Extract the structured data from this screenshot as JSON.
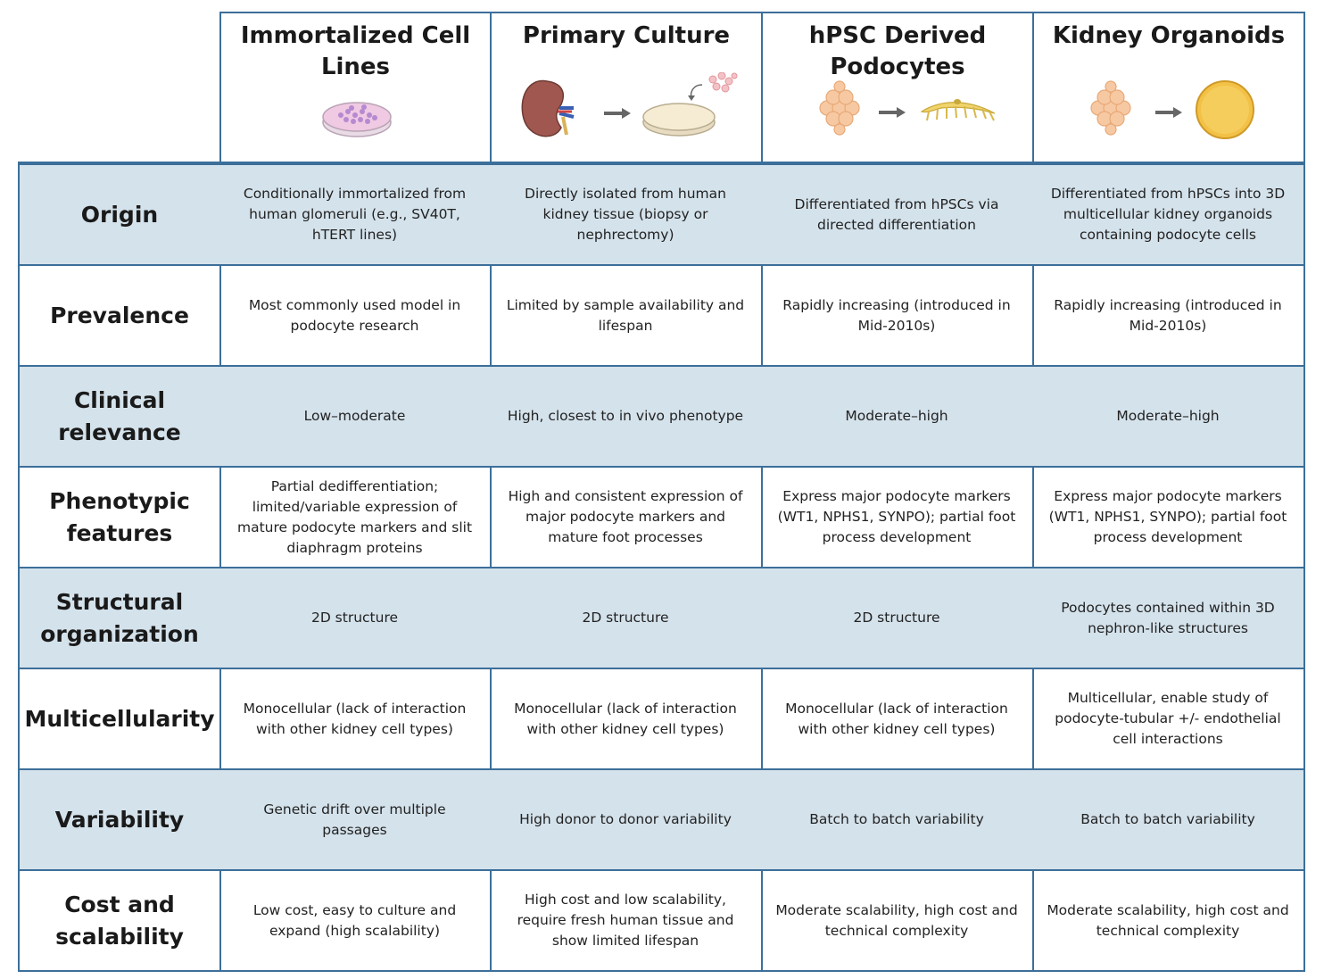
{
  "columns": [
    {
      "title_line1": "Immortalized Cell",
      "title_line2": "Lines",
      "icon": "petri-dish-purple-cells-icon"
    },
    {
      "title_line1": "Primary Culture",
      "title_line2": "",
      "icon": "kidney-to-dish-icon"
    },
    {
      "title_line1": "hPSC Derived",
      "title_line2": "Podocytes",
      "icon": "stem-cells-to-podocyte-icon"
    },
    {
      "title_line1": "Kidney Organoids",
      "title_line2": "",
      "icon": "stem-cells-to-organoid-icon"
    }
  ],
  "rows": [
    {
      "label": [
        "Origin"
      ],
      "cells": [
        [
          "Conditionally immortalized from",
          "human glomeruli (e.g., SV40T,",
          "hTERT lines)"
        ],
        [
          "Directly isolated from human",
          "kidney tissue (biopsy or",
          "nephrectomy)"
        ],
        [
          "Differentiated from hPSCs via",
          "directed differentiation"
        ],
        [
          "Differentiated from hPSCs into 3D",
          "multicellular kidney organoids",
          "containing podocyte cells"
        ]
      ]
    },
    {
      "label": [
        "Prevalence"
      ],
      "cells": [
        [
          "Most commonly used model in",
          "podocyte research"
        ],
        [
          "Limited by sample availability and",
          "lifespan"
        ],
        [
          "Rapidly increasing (introduced in",
          "Mid-2010s)"
        ],
        [
          "Rapidly increasing (introduced in",
          "Mid-2010s)"
        ]
      ]
    },
    {
      "label": [
        "Clinical",
        "relevance"
      ],
      "cells": [
        [
          "Low–moderate"
        ],
        [
          "High, closest to in vivo phenotype"
        ],
        [
          "Moderate–high"
        ],
        [
          "Moderate–high"
        ]
      ]
    },
    {
      "label": [
        "Phenotypic",
        "features"
      ],
      "cells": [
        [
          "Partial dedifferentiation;",
          "limited/variable expression of",
          "mature podocyte markers and slit",
          "diaphragm proteins"
        ],
        [
          "High and consistent expression of",
          "major podocyte markers and",
          "mature foot processes"
        ],
        [
          "Express major podocyte markers",
          "(WT1, NPHS1, SYNPO); partial foot",
          "process development"
        ],
        [
          "Express major podocyte markers",
          "(WT1, NPHS1, SYNPO); partial foot",
          "process development"
        ]
      ]
    },
    {
      "label": [
        "Structural",
        "organization"
      ],
      "cells": [
        [
          "2D structure"
        ],
        [
          "2D structure"
        ],
        [
          "2D structure"
        ],
        [
          "Podocytes contained within 3D",
          "nephron-like structures"
        ]
      ]
    },
    {
      "label": [
        "Multicellularity"
      ],
      "cells": [
        [
          "Monocellular (lack of interaction",
          "with other kidney cell types)"
        ],
        [
          "Monocellular (lack of interaction",
          "with other kidney cell types)"
        ],
        [
          "Monocellular (lack of interaction",
          "with other kidney cell types)"
        ],
        [
          "Multicellular, enable study of",
          "podocyte-tubular +/- endothelial",
          "cell interactions"
        ]
      ]
    },
    {
      "label": [
        "Variability"
      ],
      "cells": [
        [
          "Genetic drift over multiple",
          "passages"
        ],
        [
          "High donor to donor variability"
        ],
        [
          "Batch to batch variability"
        ],
        [
          "Batch to batch variability"
        ]
      ]
    },
    {
      "label": [
        "Cost and",
        "scalability"
      ],
      "cells": [
        [
          "Low cost, easy to culture and",
          "expand (high scalability)"
        ],
        [
          "High cost and low scalability,",
          "require fresh human tissue and",
          "show limited lifespan"
        ],
        [
          "Moderate scalability, high cost and",
          "technical complexity"
        ],
        [
          "Moderate scalability, high cost and",
          "technical complexity"
        ]
      ]
    }
  ],
  "colors": {
    "border": "#3c6f9a",
    "shade": "#d4e2eb"
  }
}
